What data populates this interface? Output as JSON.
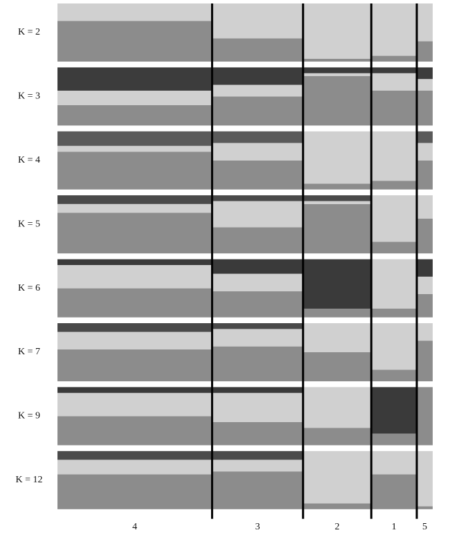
{
  "chart_data": {
    "type": "structure",
    "groups": [
      "4",
      "3",
      "2",
      "1",
      "5"
    ],
    "group_sizes": [
      68,
      40,
      30,
      20,
      7
    ],
    "panels": [
      {
        "label": "K = 2",
        "series": [
          {
            "color": "#8c8c8c",
            "values": [
              0.7,
              0.4,
              0.05,
              0.1,
              0.35
            ]
          },
          {
            "color": "#d0d0d0",
            "values": [
              0.3,
              0.6,
              0.95,
              0.9,
              0.65
            ]
          }
        ]
      },
      {
        "label": "K = 3",
        "series": [
          {
            "color": "#8c8c8c",
            "values": [
              0.35,
              0.5,
              0.85,
              0.6,
              0.6
            ]
          },
          {
            "color": "#d0d0d0",
            "values": [
              0.25,
              0.2,
              0.05,
              0.3,
              0.2
            ]
          },
          {
            "color": "#3c3c3c",
            "values": [
              0.4,
              0.3,
              0.1,
              0.1,
              0.2
            ]
          }
        ]
      },
      {
        "label": "K = 4",
        "series": [
          {
            "color": "#8c8c8c",
            "values": [
              0.65,
              0.5,
              0.1,
              0.15,
              0.5
            ]
          },
          {
            "color": "#d0d0d0",
            "values": [
              0.1,
              0.3,
              0.9,
              0.85,
              0.3
            ]
          },
          {
            "color": "#5a5a5a",
            "values": [
              0.25,
              0.2,
              0,
              0,
              0.2
            ]
          }
        ]
      },
      {
        "label": "K = 5",
        "series": [
          {
            "color": "#8c8c8c",
            "values": [
              0.7,
              0.45,
              0.85,
              0.2,
              0.6
            ]
          },
          {
            "color": "#d0d0d0",
            "values": [
              0.15,
              0.45,
              0.05,
              0.8,
              0.4
            ]
          },
          {
            "color": "#4a4a4a",
            "values": [
              0.15,
              0.1,
              0.1,
              0,
              0
            ]
          }
        ]
      },
      {
        "label": "K = 6",
        "series": [
          {
            "color": "#8c8c8c",
            "values": [
              0.5,
              0.45,
              0.15,
              0.15,
              0.4
            ]
          },
          {
            "color": "#d0d0d0",
            "values": [
              0.4,
              0.3,
              0,
              0.85,
              0.3
            ]
          },
          {
            "color": "#3a3a3a",
            "values": [
              0.1,
              0.25,
              0.85,
              0,
              0.3
            ]
          }
        ]
      },
      {
        "label": "K = 7",
        "series": [
          {
            "color": "#8c8c8c",
            "values": [
              0.55,
              0.6,
              0.5,
              0.2,
              0.7
            ]
          },
          {
            "color": "#d0d0d0",
            "values": [
              0.3,
              0.3,
              0.5,
              0.8,
              0.3
            ]
          },
          {
            "color": "#4a4a4a",
            "values": [
              0.15,
              0.1,
              0,
              0,
              0
            ]
          }
        ]
      },
      {
        "label": "K = 9",
        "series": [
          {
            "color": "#8c8c8c",
            "values": [
              0.5,
              0.4,
              0.3,
              0.2,
              1
            ]
          },
          {
            "color": "#d0d0d0",
            "values": [
              0.4,
              0.5,
              0.7,
              0,
              0
            ]
          },
          {
            "color": "#3a3a3a",
            "values": [
              0.1,
              0.1,
              0,
              0.8,
              0
            ]
          }
        ]
      },
      {
        "label": "K = 12",
        "series": [
          {
            "color": "#8c8c8c",
            "values": [
              0.6,
              0.65,
              0.1,
              0.6,
              0.05
            ]
          },
          {
            "color": "#d0d0d0",
            "values": [
              0.25,
              0.2,
              0.9,
              0.4,
              0.95
            ]
          },
          {
            "color": "#4a4a4a",
            "values": [
              0.15,
              0.15,
              0,
              0,
              0
            ]
          }
        ]
      }
    ]
  }
}
